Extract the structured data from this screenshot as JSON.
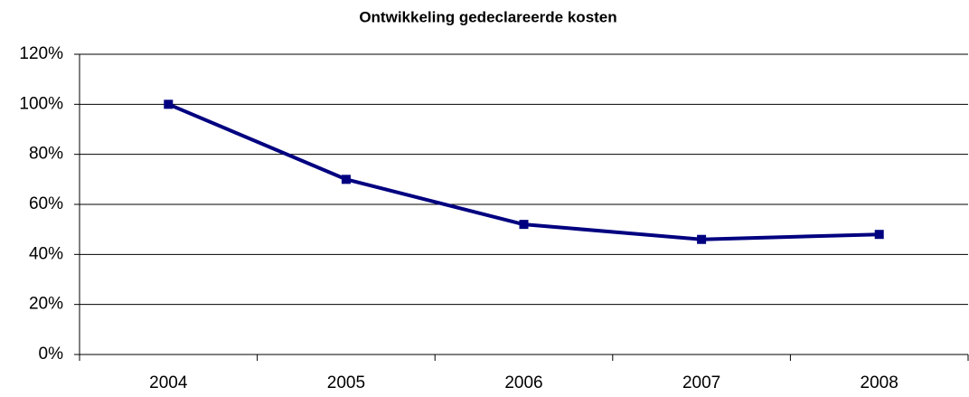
{
  "chart_data": {
    "type": "line",
    "title": "Ontwikkeling gedeclareerde kosten",
    "categories": [
      "2004",
      "2005",
      "2006",
      "2007",
      "2008"
    ],
    "values": [
      100,
      70,
      52,
      46,
      48
    ],
    "color": "#000080",
    "ylim": [
      0,
      120
    ],
    "yticks": [
      {
        "value": 0,
        "label": "0%"
      },
      {
        "value": 20,
        "label": "20%"
      },
      {
        "value": 40,
        "label": "40%"
      },
      {
        "value": 60,
        "label": "60%"
      },
      {
        "value": 80,
        "label": "80%"
      },
      {
        "value": 100,
        "label": "100%"
      },
      {
        "value": 120,
        "label": "120%"
      }
    ],
    "grid": true
  }
}
